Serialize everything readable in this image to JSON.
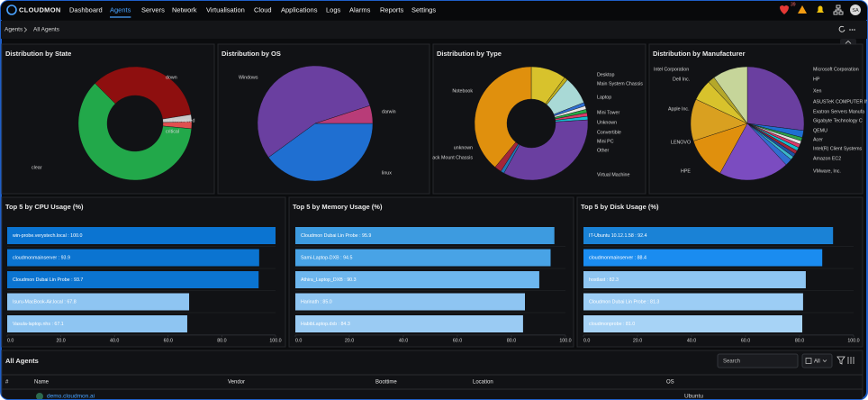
{
  "nav": {
    "logo": "CLOUDMON",
    "items": [
      "Dashboard",
      "Agents",
      "Servers",
      "Network",
      "Virtualisation",
      "Cloud",
      "Applications",
      "Logs",
      "Alarms",
      "Reports",
      "Settings"
    ],
    "active": "Agents",
    "badge": "39",
    "avatar": "SA"
  },
  "breadcrumb": [
    "Agents",
    "All Agents"
  ],
  "chart_data": [
    {
      "type": "donut",
      "title": "Distribution by State",
      "categories": [
        "down",
        "not monitored",
        "critical",
        "clear"
      ],
      "values": [
        35,
        2,
        2,
        61
      ],
      "colors": [
        "#8e0f0f",
        "#c9c9c9",
        "#e05050",
        "#22a84a"
      ]
    },
    {
      "type": "pie",
      "title": "Distribution by OS",
      "categories": [
        "linux",
        "Windows",
        "darwin"
      ],
      "values": [
        40,
        55,
        5
      ],
      "colors": [
        "#1f6fd1",
        "#6a3fa0",
        "#b83c78"
      ]
    },
    {
      "type": "donut",
      "title": "Distribution by Type",
      "categories": [
        "Desktop",
        "Main System Chassis",
        "Laptop",
        "Mini Tower",
        "Unknown",
        "Convertible",
        "Mini PC",
        "Other",
        "Virtual Machine",
        "ack Mount Chassis",
        "unknown",
        "Notebook"
      ],
      "values": [
        10,
        1,
        8,
        1,
        1,
        1,
        1,
        1,
        34,
        1,
        2,
        39
      ],
      "colors": [
        "#d8c22c",
        "#bfae1d",
        "#a9d9d6",
        "#2f6fd0",
        "#e6e6e6",
        "#28a745",
        "#d93a6a",
        "#17becf",
        "#6a3fa0",
        "#1f77b4",
        "#a3263a",
        "#e0900d"
      ]
    },
    {
      "type": "pie",
      "title": "Distribution by Manufacturer",
      "categories": [
        "Microsoft Corporation",
        "HP",
        "Xen",
        "ASUSTeK COMPUTER IN",
        "Exatron Servers Manufa",
        "Gigabyte Technology C",
        "QEMU",
        "Acer",
        "Intel(R) Client Systems",
        "Amazon EC2",
        "VMware, Inc.",
        "HPE",
        "LENOVO",
        "Apple Inc.",
        "Dell Inc.",
        "Intel Corporation"
      ],
      "values": [
        27,
        2,
        1,
        1,
        1,
        1,
        1,
        1,
        1,
        2,
        20,
        12,
        12,
        6,
        2,
        10
      ],
      "colors": [
        "#6a3fa0",
        "#1f6fd1",
        "#2fa34a",
        "#e0e0e0",
        "#d93a6a",
        "#17becf",
        "#a3263a",
        "#1f4fa0",
        "#3cb6c8",
        "#2f6fd0",
        "#7b4cc0",
        "#e0900d",
        "#d9a020",
        "#d8c22c",
        "#b5a82a",
        "#c6d59a"
      ]
    },
    {
      "type": "bar",
      "orientation": "horizontal",
      "title": "Top 5 by CPU Usage (%)",
      "values": [
        100.0,
        93.9,
        93.7,
        67.8,
        67.1
      ],
      "value_labels": [
        "win-probe.verystech.local : 100.0",
        "cloudmonmainserver : 93.9",
        "Cloudmon Dubai Lin Probe : 93.7",
        "Isuru-MacBook-Air.local : 67.8",
        "Vasula-laptop.nhs : 67.1"
      ],
      "colors": [
        "#0b74d1",
        "#0b74d1",
        "#0b74d1",
        "#8ec5f2",
        "#8ec5f2"
      ],
      "xlim": [
        0,
        100
      ],
      "xticks": [
        {
          "value": 0,
          "label": "0.0"
        },
        {
          "value": 20,
          "label": "20.0"
        },
        {
          "value": 40,
          "label": "40.0"
        },
        {
          "value": 60,
          "label": "60.0"
        },
        {
          "value": 80,
          "label": "80.0"
        },
        {
          "value": 100,
          "label": "100.0"
        }
      ]
    },
    {
      "type": "bar",
      "orientation": "horizontal",
      "title": "Top 5 by Memory Usage (%)",
      "values": [
        95.9,
        94.5,
        90.3,
        85.0,
        84.3
      ],
      "value_labels": [
        "Cloudmon Dubai Lin Probe : 95.9",
        "Sami-Laptop-DXB : 94.5",
        "Athira_Laptop_DXB : 90.3",
        "Harinath : 85.0",
        "HabibLaptop.dxb : 84.3"
      ],
      "colors": [
        "#3d9be0",
        "#48a3e6",
        "#6db6ee",
        "#8ec5f2",
        "#9acbf3"
      ],
      "xlim": [
        0,
        100
      ],
      "xticks": [
        {
          "value": 0,
          "label": "0.0"
        },
        {
          "value": 20,
          "label": "20.0"
        },
        {
          "value": 40,
          "label": "40.0"
        },
        {
          "value": 60,
          "label": "60.0"
        },
        {
          "value": 80,
          "label": "80.0"
        },
        {
          "value": 100,
          "label": "100.0"
        }
      ]
    },
    {
      "type": "bar",
      "orientation": "horizontal",
      "title": "Top 5 by Disk Usage (%)",
      "values": [
        92.4,
        88.4,
        82.3,
        81.3,
        81.0
      ],
      "value_labels": [
        "IT-Ubuntu 10.12.1.58 : 92.4",
        "cloudmonmainserver : 88.4",
        "hostlast : 82.3",
        "Cloudmon Dubai Lin Probe : 81.3",
        "cloudmonprobe : 81.0"
      ],
      "colors": [
        "#1a82d6",
        "#1a8cf0",
        "#8ec5f2",
        "#9ccdf5",
        "#a7d3f6"
      ],
      "xlim": [
        0,
        100
      ],
      "xticks": [
        {
          "value": 0,
          "label": "0.0"
        },
        {
          "value": 20,
          "label": "20.0"
        },
        {
          "value": 40,
          "label": "40.0"
        },
        {
          "value": 60,
          "label": "60.0"
        },
        {
          "value": 80,
          "label": "80.0"
        },
        {
          "value": 100,
          "label": "100.0"
        }
      ]
    }
  ],
  "table": {
    "title": "All Agents",
    "search": "Search",
    "filter": "All",
    "columns": [
      "#",
      "Name",
      "Vendor",
      "Boottime",
      "Location",
      "OS"
    ],
    "rows": [
      {
        "name": "demo.cloudmon.ai",
        "os": "Ubuntu"
      }
    ]
  }
}
